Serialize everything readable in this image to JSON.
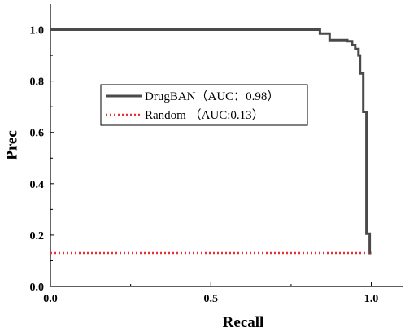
{
  "chart_data": {
    "type": "line",
    "xlabel": "Recall",
    "ylabel": "Prec",
    "xlim": [
      0,
      1.1
    ],
    "ylim": [
      0,
      1.1
    ],
    "x_ticks": [
      "0.0",
      "0.5",
      "1.0"
    ],
    "y_ticks": [
      "0.0",
      "0.2",
      "0.4",
      "0.6",
      "0.8",
      "1.0"
    ],
    "x_tick_values": [
      0,
      0.5,
      1.0
    ],
    "y_tick_values": [
      0,
      0.2,
      0.4,
      0.6,
      0.8,
      1.0
    ],
    "legend_position": "center-left",
    "series": [
      {
        "name": "DrugBAN（AUC：0.98）",
        "color": "#4a4a4a",
        "style": "solid",
        "points": [
          [
            0.0,
            1.0
          ],
          [
            0.84,
            1.0
          ],
          [
            0.84,
            0.985
          ],
          [
            0.87,
            0.985
          ],
          [
            0.87,
            0.96
          ],
          [
            0.925,
            0.96
          ],
          [
            0.925,
            0.955
          ],
          [
            0.94,
            0.955
          ],
          [
            0.94,
            0.94
          ],
          [
            0.95,
            0.94
          ],
          [
            0.95,
            0.925
          ],
          [
            0.96,
            0.925
          ],
          [
            0.96,
            0.9
          ],
          [
            0.965,
            0.9
          ],
          [
            0.965,
            0.83
          ],
          [
            0.975,
            0.83
          ],
          [
            0.975,
            0.68
          ],
          [
            0.985,
            0.68
          ],
          [
            0.985,
            0.205
          ],
          [
            0.995,
            0.205
          ],
          [
            0.995,
            0.13
          ],
          [
            1.0,
            0.13
          ]
        ]
      },
      {
        "name": "Random （AUC:0.13）",
        "color": "#e83030",
        "style": "dotted",
        "points": [
          [
            0.0,
            0.13
          ],
          [
            1.0,
            0.13
          ]
        ]
      }
    ]
  }
}
